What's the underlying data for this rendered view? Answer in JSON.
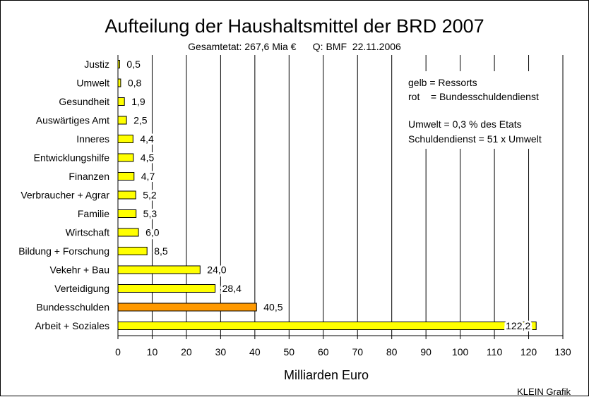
{
  "chart_data": {
    "type": "bar",
    "orientation": "horizontal",
    "title": "Aufteilung der Haushaltsmittel der BRD 2007",
    "subtitle": "Gesamtetat: 267,6 Mia €      Q: BMF  22.11.2006",
    "xlabel": "Milliarden Euro",
    "xlim": [
      0,
      130
    ],
    "xticks": [
      "0",
      "10",
      "20",
      "30",
      "40",
      "50",
      "60",
      "70",
      "80",
      "90",
      "100",
      "110",
      "120",
      "130"
    ],
    "grid": true,
    "categories": [
      "Justiz",
      "Umwelt",
      "Gesundheit",
      "Auswärtiges Amt",
      "Inneres",
      "Entwicklungshilfe",
      "Finanzen",
      "Verbraucher + Agrar",
      "Familie",
      "Wirtschaft",
      "Bildung + Forschung",
      "Vekehr + Bau",
      "Verteidigung",
      "Bundesschulden",
      "Arbeit + Soziales"
    ],
    "values": [
      0.5,
      0.8,
      1.9,
      2.5,
      4.4,
      4.5,
      4.7,
      5.2,
      5.3,
      6.0,
      8.5,
      24.0,
      28.4,
      40.5,
      122.2
    ],
    "value_labels": [
      "0,5",
      "0,8",
      "1,9",
      "2,5",
      "4,4",
      "4,5",
      "4,7",
      "5,2",
      "5,3",
      "6,0",
      "8,5",
      "24,0",
      "28,4",
      "40,5",
      "122,2"
    ],
    "bar_kinds": [
      "ressort",
      "ressort",
      "ressort",
      "ressort",
      "ressort",
      "ressort",
      "ressort",
      "ressort",
      "ressort",
      "ressort",
      "ressort",
      "ressort",
      "ressort",
      "schulden",
      "ressort"
    ],
    "colors": {
      "ressort": "#ffff00",
      "schulden": "#ff9900"
    },
    "annotations": [
      "gelb = Ressorts",
      "rot    = Bundesschuldendienst",
      "Umwelt = 0,3 % des Etats",
      "Schuldendienst = 51 x Umwelt"
    ]
  },
  "credit": "KLEIN Grafik"
}
